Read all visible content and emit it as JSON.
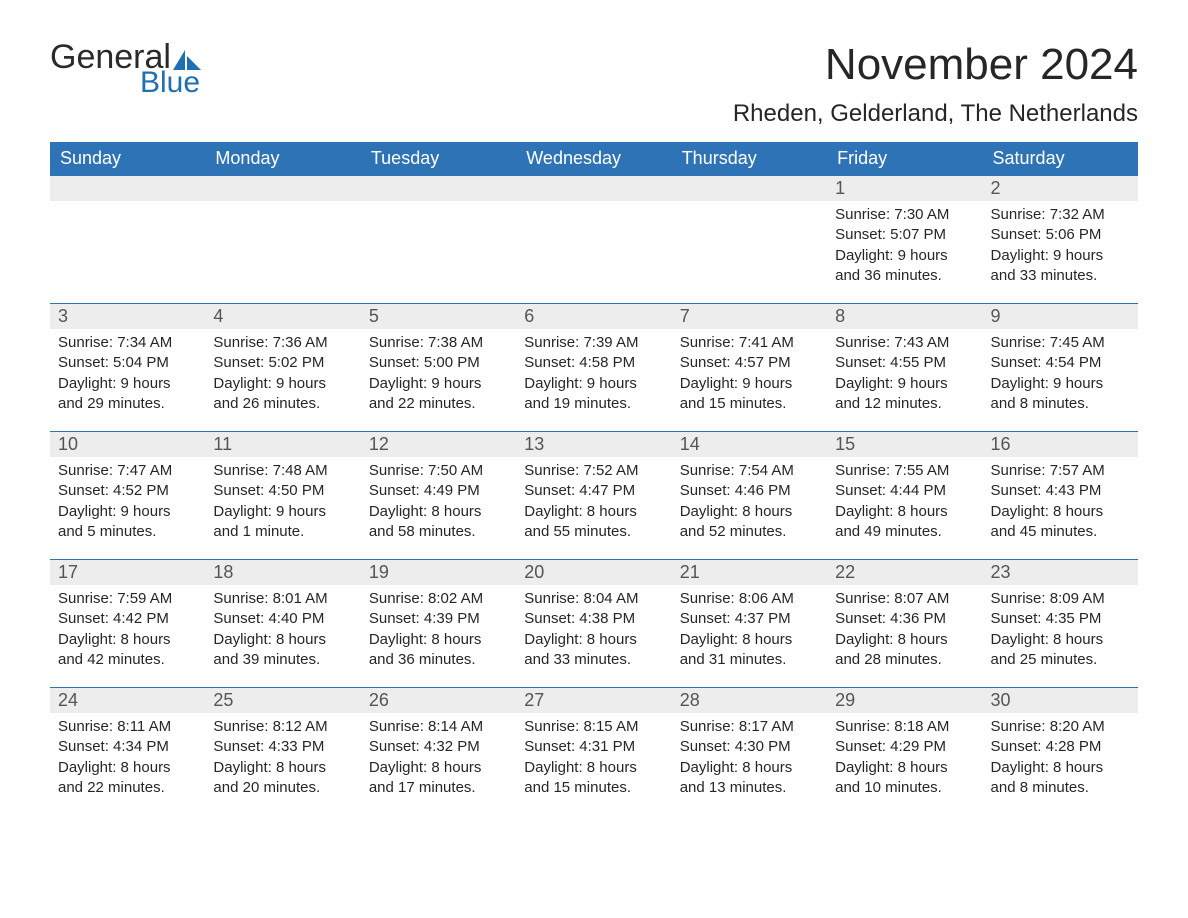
{
  "logo": {
    "word1": "General",
    "word2": "Blue",
    "icon_color": "#1f6fb3"
  },
  "title": "November 2024",
  "subtitle": "Rheden, Gelderland, The Netherlands",
  "colors": {
    "header_bg": "#2d73b6",
    "header_text": "#ffffff",
    "daynum_bg": "#ededed",
    "daynum_text": "#555555",
    "row_border": "#2d73b6",
    "body_text": "#262626",
    "page_bg": "#ffffff",
    "logo_blue": "#1f6fb3",
    "logo_dark": "#2a2a2a"
  },
  "day_labels": [
    "Sunday",
    "Monday",
    "Tuesday",
    "Wednesday",
    "Thursday",
    "Friday",
    "Saturday"
  ],
  "label_prefix": {
    "sunrise": "Sunrise: ",
    "sunset": "Sunset: ",
    "daylight": "Daylight: "
  },
  "weeks": [
    [
      null,
      null,
      null,
      null,
      null,
      {
        "n": "1",
        "sunrise": "7:30 AM",
        "sunset": "5:07 PM",
        "daylight": "9 hours and 36 minutes."
      },
      {
        "n": "2",
        "sunrise": "7:32 AM",
        "sunset": "5:06 PM",
        "daylight": "9 hours and 33 minutes."
      }
    ],
    [
      {
        "n": "3",
        "sunrise": "7:34 AM",
        "sunset": "5:04 PM",
        "daylight": "9 hours and 29 minutes."
      },
      {
        "n": "4",
        "sunrise": "7:36 AM",
        "sunset": "5:02 PM",
        "daylight": "9 hours and 26 minutes."
      },
      {
        "n": "5",
        "sunrise": "7:38 AM",
        "sunset": "5:00 PM",
        "daylight": "9 hours and 22 minutes."
      },
      {
        "n": "6",
        "sunrise": "7:39 AM",
        "sunset": "4:58 PM",
        "daylight": "9 hours and 19 minutes."
      },
      {
        "n": "7",
        "sunrise": "7:41 AM",
        "sunset": "4:57 PM",
        "daylight": "9 hours and 15 minutes."
      },
      {
        "n": "8",
        "sunrise": "7:43 AM",
        "sunset": "4:55 PM",
        "daylight": "9 hours and 12 minutes."
      },
      {
        "n": "9",
        "sunrise": "7:45 AM",
        "sunset": "4:54 PM",
        "daylight": "9 hours and 8 minutes."
      }
    ],
    [
      {
        "n": "10",
        "sunrise": "7:47 AM",
        "sunset": "4:52 PM",
        "daylight": "9 hours and 5 minutes."
      },
      {
        "n": "11",
        "sunrise": "7:48 AM",
        "sunset": "4:50 PM",
        "daylight": "9 hours and 1 minute."
      },
      {
        "n": "12",
        "sunrise": "7:50 AM",
        "sunset": "4:49 PM",
        "daylight": "8 hours and 58 minutes."
      },
      {
        "n": "13",
        "sunrise": "7:52 AM",
        "sunset": "4:47 PM",
        "daylight": "8 hours and 55 minutes."
      },
      {
        "n": "14",
        "sunrise": "7:54 AM",
        "sunset": "4:46 PM",
        "daylight": "8 hours and 52 minutes."
      },
      {
        "n": "15",
        "sunrise": "7:55 AM",
        "sunset": "4:44 PM",
        "daylight": "8 hours and 49 minutes."
      },
      {
        "n": "16",
        "sunrise": "7:57 AM",
        "sunset": "4:43 PM",
        "daylight": "8 hours and 45 minutes."
      }
    ],
    [
      {
        "n": "17",
        "sunrise": "7:59 AM",
        "sunset": "4:42 PM",
        "daylight": "8 hours and 42 minutes."
      },
      {
        "n": "18",
        "sunrise": "8:01 AM",
        "sunset": "4:40 PM",
        "daylight": "8 hours and 39 minutes."
      },
      {
        "n": "19",
        "sunrise": "8:02 AM",
        "sunset": "4:39 PM",
        "daylight": "8 hours and 36 minutes."
      },
      {
        "n": "20",
        "sunrise": "8:04 AM",
        "sunset": "4:38 PM",
        "daylight": "8 hours and 33 minutes."
      },
      {
        "n": "21",
        "sunrise": "8:06 AM",
        "sunset": "4:37 PM",
        "daylight": "8 hours and 31 minutes."
      },
      {
        "n": "22",
        "sunrise": "8:07 AM",
        "sunset": "4:36 PM",
        "daylight": "8 hours and 28 minutes."
      },
      {
        "n": "23",
        "sunrise": "8:09 AM",
        "sunset": "4:35 PM",
        "daylight": "8 hours and 25 minutes."
      }
    ],
    [
      {
        "n": "24",
        "sunrise": "8:11 AM",
        "sunset": "4:34 PM",
        "daylight": "8 hours and 22 minutes."
      },
      {
        "n": "25",
        "sunrise": "8:12 AM",
        "sunset": "4:33 PM",
        "daylight": "8 hours and 20 minutes."
      },
      {
        "n": "26",
        "sunrise": "8:14 AM",
        "sunset": "4:32 PM",
        "daylight": "8 hours and 17 minutes."
      },
      {
        "n": "27",
        "sunrise": "8:15 AM",
        "sunset": "4:31 PM",
        "daylight": "8 hours and 15 minutes."
      },
      {
        "n": "28",
        "sunrise": "8:17 AM",
        "sunset": "4:30 PM",
        "daylight": "8 hours and 13 minutes."
      },
      {
        "n": "29",
        "sunrise": "8:18 AM",
        "sunset": "4:29 PM",
        "daylight": "8 hours and 10 minutes."
      },
      {
        "n": "30",
        "sunrise": "8:20 AM",
        "sunset": "4:28 PM",
        "daylight": "8 hours and 8 minutes."
      }
    ]
  ]
}
